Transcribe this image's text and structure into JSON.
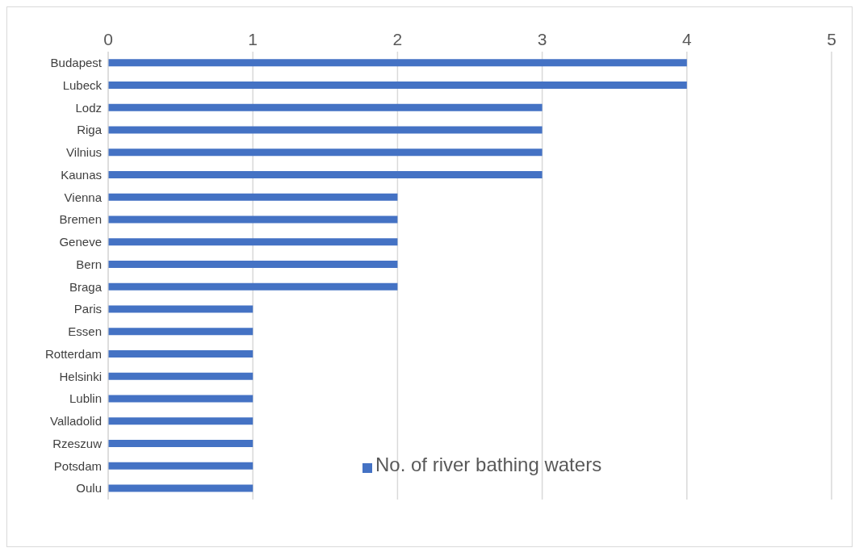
{
  "chart_data": {
    "type": "bar",
    "orientation": "horizontal",
    "categories": [
      "Budapest",
      "Lubeck",
      "Lodz",
      "Riga",
      "Vilnius",
      "Kaunas",
      "Vienna",
      "Bremen",
      "Geneve",
      "Bern",
      "Braga",
      "Paris",
      "Essen",
      "Rotterdam",
      "Helsinki",
      "Lublin",
      "Valladolid",
      "Rzeszuw",
      "Potsdam",
      "Oulu"
    ],
    "series": [
      {
        "name": "No. of river bathing waters",
        "color": "#4472c4",
        "values": [
          4,
          4,
          3,
          3,
          3,
          3,
          2,
          2,
          2,
          2,
          2,
          1,
          1,
          1,
          1,
          1,
          1,
          1,
          1,
          1
        ]
      }
    ],
    "xlim": [
      0,
      5
    ],
    "xticks": [
      0,
      1,
      2,
      3,
      4,
      5
    ],
    "grid": "x",
    "legend": "bottom right"
  }
}
